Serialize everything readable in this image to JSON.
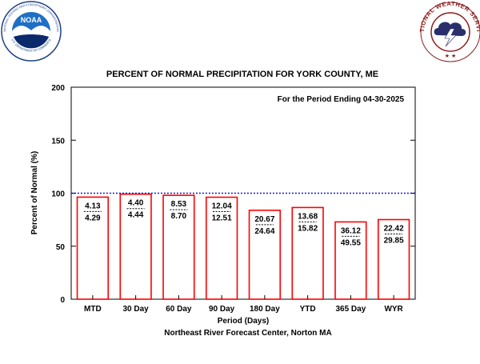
{
  "logos": {
    "noaa": {
      "text": "NOAA",
      "ring_text": "NATIONAL OCEANIC AND ATMOSPHERIC ADMINISTRATION",
      "bottom_text": "U.S. DEPARTMENT OF COMMERCE",
      "colors": {
        "sky": "#1e6fc6",
        "bird": "#ffffff",
        "sea": "#0b2a6b"
      }
    },
    "nws": {
      "ring_text": "NATIONAL WEATHER SERVICE",
      "colors": {
        "ring": "#8b1e1e",
        "cloud": "#2a2f6b",
        "bolt": "#ffffff"
      }
    }
  },
  "chart_data": {
    "type": "bar",
    "title": "PERCENT OF NORMAL PRECIPITATION FOR YORK COUNTY, ME",
    "annotation": "For the Period Ending 04-30-2025",
    "xlabel": "Period (Days)",
    "ylabel": "Percent of Normal (%)",
    "footer": "Northeast River Forecast Center, Norton MA",
    "ylim": [
      0,
      200
    ],
    "yticks": [
      0,
      50,
      100,
      150,
      200
    ],
    "reference_line": 100,
    "grid": false,
    "categories": [
      "MTD",
      "30 Day",
      "60 Day",
      "90 Day",
      "180 Day",
      "YTD",
      "365 Day",
      "WYR"
    ],
    "values": [
      96.3,
      99.1,
      98.0,
      96.2,
      83.9,
      86.5,
      72.9,
      75.1
    ],
    "observed": [
      "4.13",
      "4.40",
      "8.53",
      "12.04",
      "20.67",
      "13.68",
      "36.12",
      "22.42"
    ],
    "normal": [
      "4.29",
      "4.44",
      "8.70",
      "12.51",
      "24.64",
      "15.82",
      "49.55",
      "29.85"
    ],
    "colors": {
      "bar_edge": "#ff0000",
      "bar_fill": "#ffffff",
      "reference": "#0000cc",
      "axis": "#000000"
    }
  }
}
